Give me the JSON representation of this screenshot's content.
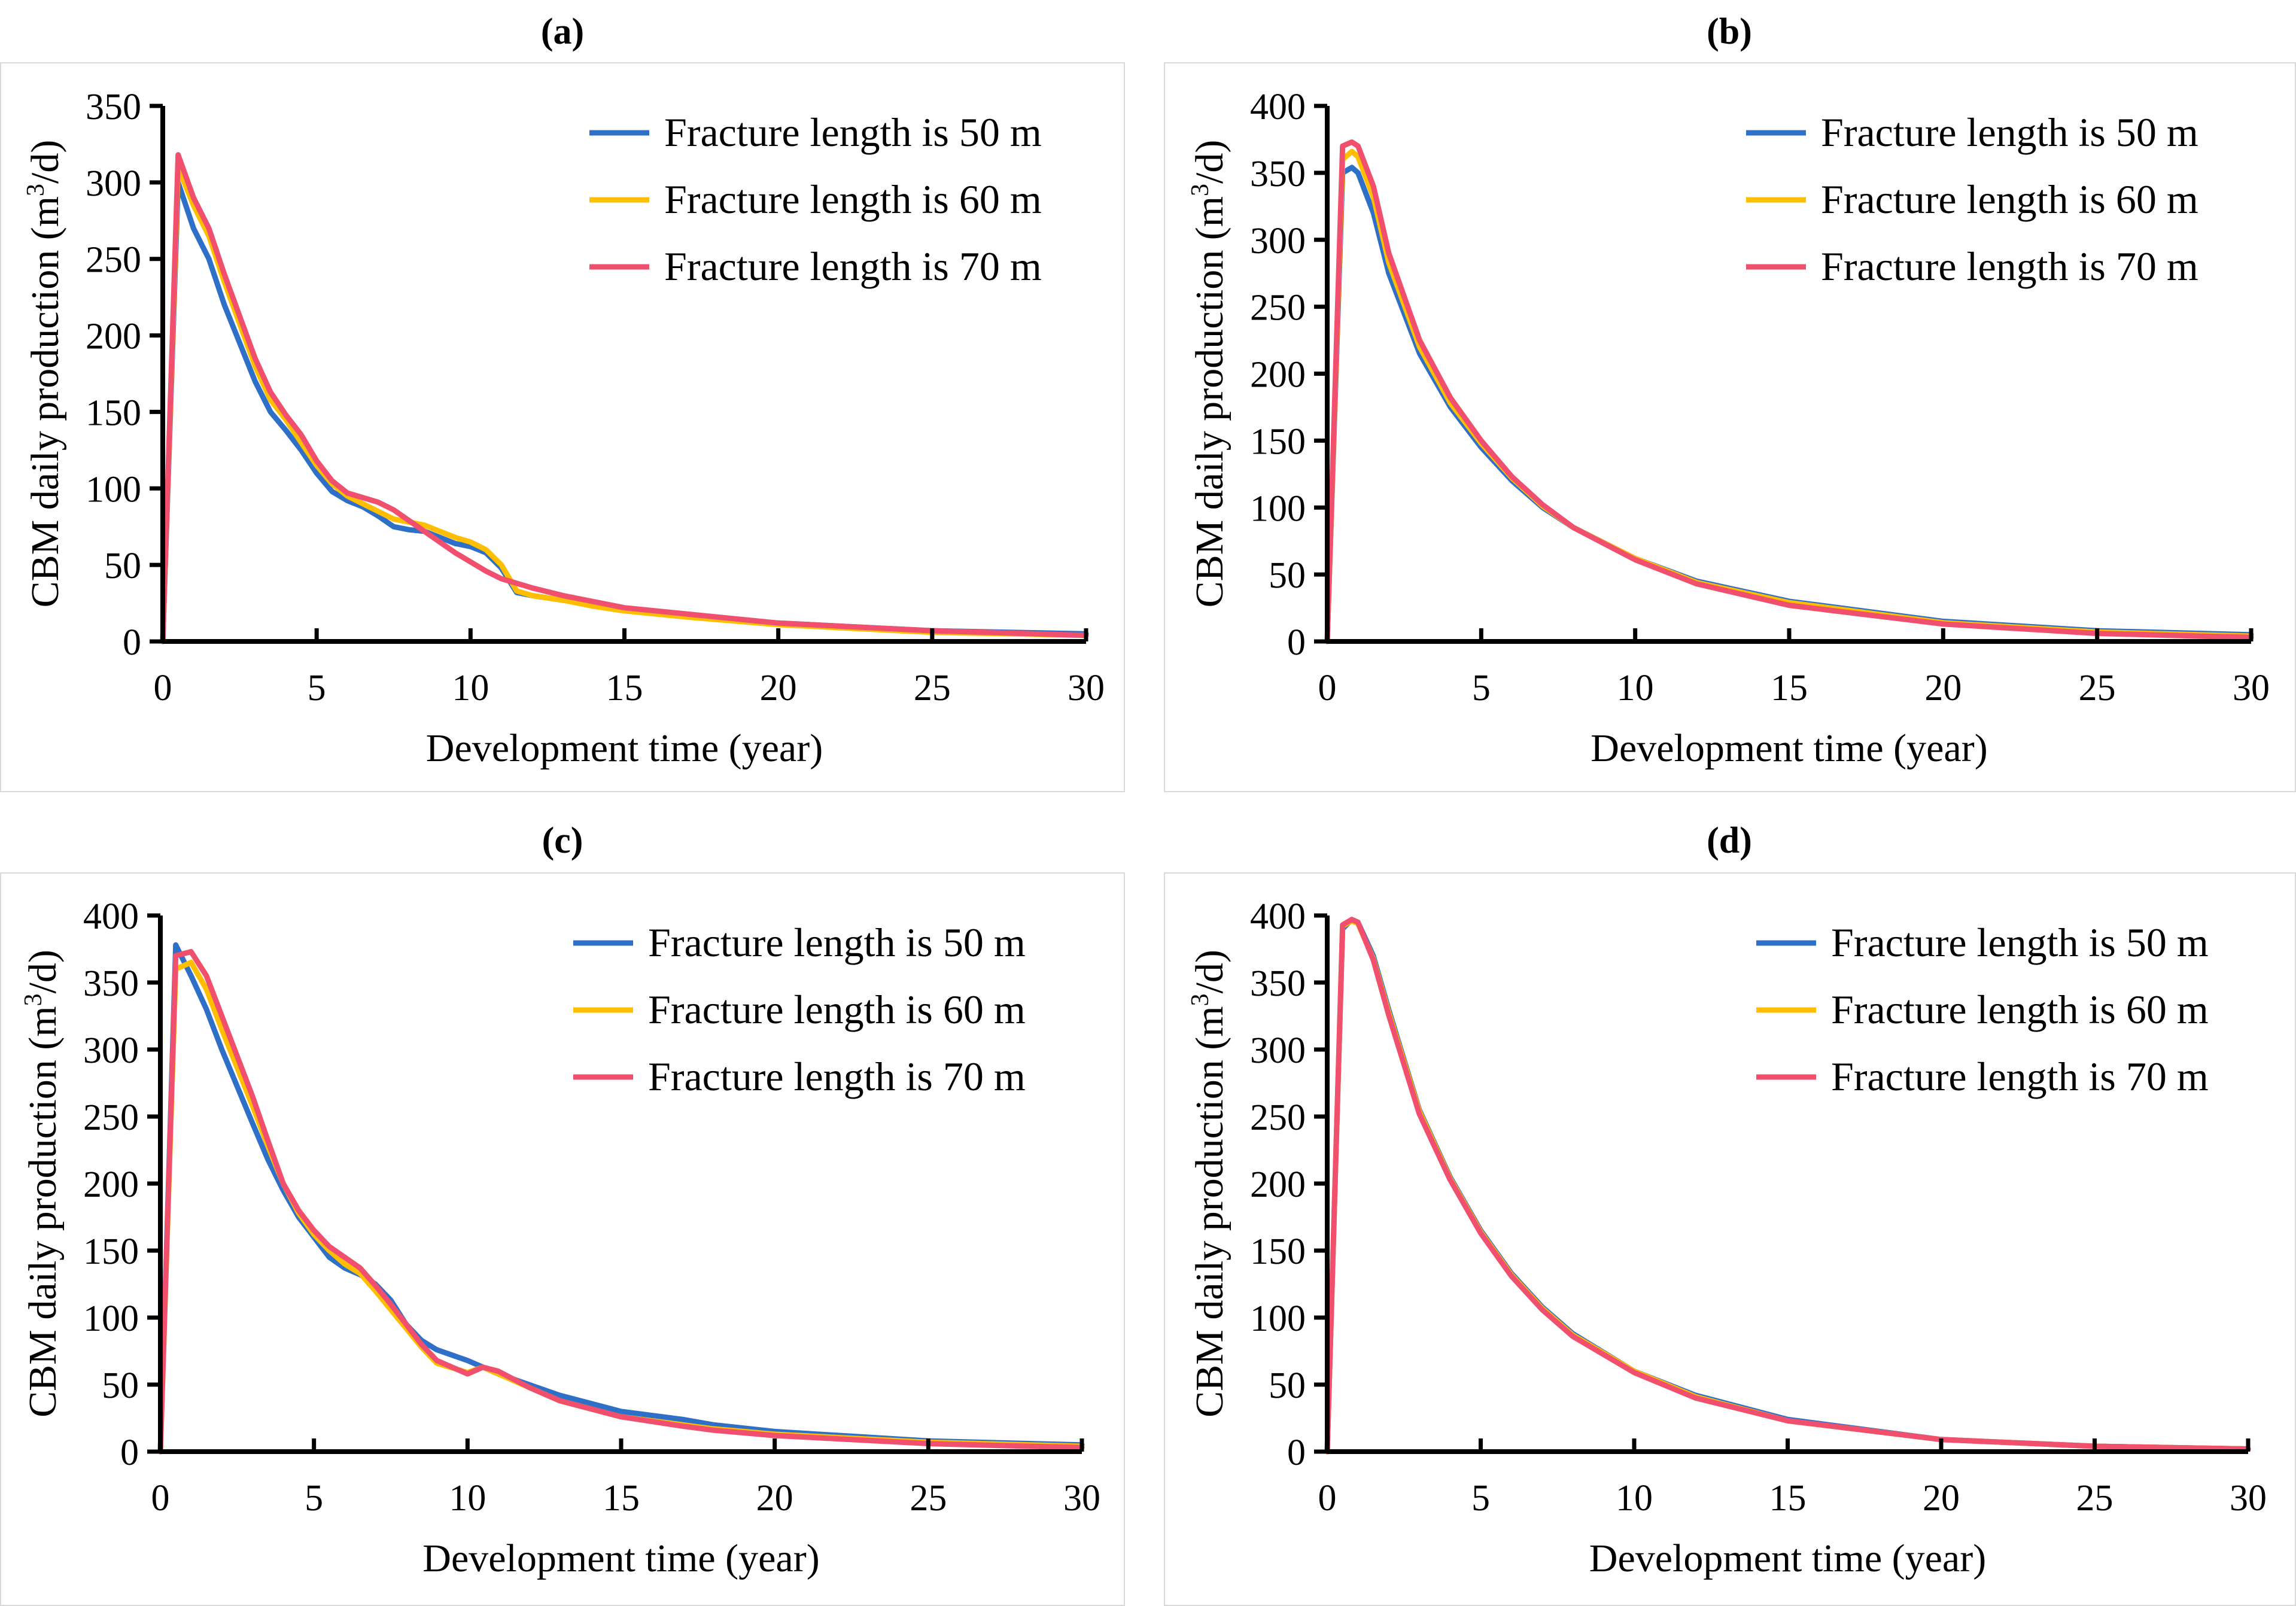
{
  "figure": {
    "panel_labels": [
      "(a)",
      "(b)",
      "(c)",
      "(d)"
    ],
    "series_colors": {
      "50 m": "#2e6fc7",
      "60 m": "#ffbe00",
      "70 m": "#f0506e"
    }
  },
  "chart_data": [
    {
      "type": "line",
      "panel": "(a)",
      "xlabel": "Development time (year)",
      "ylabel": "CBM daily production (m³/d)",
      "xlim": [
        0,
        30
      ],
      "ylim": [
        0,
        350
      ],
      "xticks": [
        0,
        5,
        10,
        15,
        20,
        25,
        30
      ],
      "yticks": [
        0,
        50,
        100,
        150,
        200,
        250,
        300,
        350
      ],
      "legend": "top-right",
      "series": [
        {
          "name": "Fracture length is 50 m",
          "color": "#2e6fc7",
          "x": [
            0,
            0.5,
            1,
            1.5,
            2,
            3,
            3.5,
            4,
            4.5,
            5,
            5.5,
            6,
            6.5,
            7,
            7.5,
            8,
            8.5,
            9,
            9.5,
            10,
            10.5,
            11,
            11.5,
            12,
            13,
            14,
            15,
            17,
            20,
            25,
            30
          ],
          "y": [
            0,
            300,
            270,
            250,
            220,
            170,
            150,
            138,
            125,
            110,
            98,
            92,
            88,
            82,
            75,
            73,
            72,
            68,
            64,
            62,
            58,
            48,
            32,
            30,
            27,
            24,
            21,
            17,
            12,
            7,
            5
          ]
        },
        {
          "name": "Fracture length is 60 m",
          "color": "#ffbe00",
          "x": [
            0,
            0.5,
            1,
            1.5,
            2,
            3,
            3.5,
            4,
            4.5,
            5,
            5.5,
            6,
            6.5,
            7,
            7.5,
            8,
            8.5,
            9,
            9.5,
            10,
            10.5,
            11,
            11.5,
            12,
            13,
            14,
            15,
            17,
            20,
            25,
            30
          ],
          "y": [
            0,
            310,
            285,
            265,
            235,
            180,
            158,
            145,
            130,
            115,
            103,
            95,
            90,
            85,
            80,
            78,
            76,
            72,
            68,
            65,
            60,
            50,
            33,
            30,
            27,
            23,
            20,
            16,
            11,
            6,
            4
          ]
        },
        {
          "name": "Fracture length is 70 m",
          "color": "#f0506e",
          "x": [
            0,
            0.5,
            1,
            1.5,
            2,
            3,
            3.5,
            4,
            4.5,
            5,
            5.5,
            6,
            6.5,
            7,
            7.5,
            8,
            8.5,
            9,
            9.5,
            10,
            10.5,
            11,
            11.5,
            12,
            13,
            14,
            15,
            17,
            20,
            25,
            30
          ],
          "y": [
            0,
            318,
            290,
            270,
            240,
            185,
            163,
            148,
            135,
            118,
            105,
            97,
            94,
            91,
            86,
            79,
            72,
            65,
            58,
            52,
            46,
            41,
            38,
            35,
            30,
            26,
            22,
            18,
            12,
            7,
            4
          ]
        }
      ]
    },
    {
      "type": "line",
      "panel": "(b)",
      "xlabel": "Development time (year)",
      "ylabel": "CBM daily production (m³/d)",
      "xlim": [
        0,
        30
      ],
      "ylim": [
        0,
        400
      ],
      "xticks": [
        0,
        5,
        10,
        15,
        20,
        25,
        30
      ],
      "yticks": [
        0,
        50,
        100,
        150,
        200,
        250,
        300,
        350,
        400
      ],
      "legend": "top-right",
      "series": [
        {
          "name": "Fracture length is 50 m",
          "color": "#2e6fc7",
          "x": [
            0,
            0.5,
            0.8,
            1,
            1.5,
            2,
            3,
            4,
            5,
            6,
            7,
            8,
            10,
            12,
            15,
            20,
            25,
            30
          ],
          "y": [
            0,
            350,
            354,
            350,
            320,
            275,
            215,
            175,
            145,
            120,
            100,
            85,
            62,
            45,
            30,
            15,
            8,
            5
          ]
        },
        {
          "name": "Fracture length is 60 m",
          "color": "#ffbe00",
          "x": [
            0,
            0.5,
            0.8,
            1,
            1.5,
            2,
            3,
            4,
            5,
            6,
            7,
            8,
            10,
            12,
            15,
            20,
            25,
            30
          ],
          "y": [
            0,
            360,
            366,
            362,
            332,
            283,
            220,
            178,
            148,
            122,
            101,
            85,
            62,
            44,
            29,
            14,
            7,
            4
          ]
        },
        {
          "name": "Fracture length is 70 m",
          "color": "#f0506e",
          "x": [
            0,
            0.5,
            0.8,
            1,
            1.5,
            2,
            3,
            4,
            5,
            6,
            7,
            8,
            10,
            12,
            15,
            20,
            25,
            30
          ],
          "y": [
            0,
            370,
            373,
            370,
            340,
            290,
            225,
            182,
            150,
            123,
            102,
            85,
            61,
            43,
            27,
            13,
            6,
            3
          ]
        }
      ]
    },
    {
      "type": "line",
      "panel": "(c)",
      "xlabel": "Development time (year)",
      "ylabel": "CBM daily production (m³/d)",
      "xlim": [
        0,
        30
      ],
      "ylim": [
        0,
        400
      ],
      "xticks": [
        0,
        5,
        10,
        15,
        20,
        25,
        30
      ],
      "yticks": [
        0,
        50,
        100,
        150,
        200,
        250,
        300,
        350,
        400
      ],
      "legend": "top-right",
      "series": [
        {
          "name": "Fracture length is 50 m",
          "color": "#2e6fc7",
          "x": [
            0,
            0.5,
            1,
            1.5,
            2,
            3,
            3.5,
            4,
            4.5,
            5,
            5.5,
            6,
            6.5,
            7,
            7.5,
            8,
            8.5,
            9,
            10,
            10.5,
            11,
            12,
            13,
            15,
            17,
            18,
            20,
            25,
            30
          ],
          "y": [
            0,
            378,
            355,
            330,
            300,
            245,
            218,
            195,
            175,
            160,
            145,
            137,
            132,
            125,
            113,
            95,
            83,
            76,
            68,
            63,
            58,
            50,
            42,
            30,
            24,
            20,
            15,
            8,
            5
          ]
        },
        {
          "name": "Fracture length is 60 m",
          "color": "#ffbe00",
          "x": [
            0,
            0.5,
            1,
            1.5,
            2,
            3,
            3.5,
            4,
            4.5,
            5,
            5.5,
            6,
            6.5,
            7,
            7.5,
            8,
            8.5,
            9,
            10,
            10.5,
            11,
            12,
            13,
            15,
            17,
            18,
            20,
            25,
            30
          ],
          "y": [
            0,
            360,
            365,
            345,
            315,
            258,
            228,
            200,
            178,
            162,
            150,
            140,
            133,
            120,
            106,
            92,
            78,
            66,
            59,
            63,
            58,
            48,
            38,
            26,
            20,
            17,
            13,
            7,
            4
          ]
        },
        {
          "name": "Fracture length is 70 m",
          "color": "#f0506e",
          "x": [
            0,
            0.5,
            1,
            1.5,
            2,
            3,
            3.5,
            4,
            4.5,
            5,
            5.5,
            6,
            6.5,
            7,
            7.5,
            8,
            8.5,
            9,
            10,
            10.5,
            11,
            12,
            13,
            15,
            17,
            18,
            20,
            25,
            30
          ],
          "y": [
            0,
            370,
            373,
            355,
            325,
            265,
            232,
            200,
            180,
            165,
            153,
            145,
            137,
            124,
            110,
            95,
            80,
            68,
            58,
            63,
            60,
            48,
            38,
            26,
            19,
            16,
            12,
            6,
            3
          ]
        }
      ]
    },
    {
      "type": "line",
      "panel": "(d)",
      "xlabel": "Development time (year)",
      "ylabel": "CBM daily production (m³/d)",
      "xlim": [
        0,
        30
      ],
      "ylim": [
        0,
        400
      ],
      "xticks": [
        0,
        5,
        10,
        15,
        20,
        25,
        30
      ],
      "yticks": [
        0,
        50,
        100,
        150,
        200,
        250,
        300,
        350,
        400
      ],
      "legend": "top-right",
      "series": [
        {
          "name": "Fracture length is 50 m",
          "color": "#2e6fc7",
          "x": [
            0,
            0.5,
            0.8,
            1,
            1.5,
            2,
            3,
            4,
            5,
            6,
            7,
            8,
            10,
            12,
            15,
            20,
            25,
            30
          ],
          "y": [
            0,
            390,
            397,
            395,
            370,
            330,
            255,
            205,
            165,
            133,
            108,
            88,
            60,
            42,
            24,
            9,
            4,
            2
          ]
        },
        {
          "name": "Fracture length is 60 m",
          "color": "#ffbe00",
          "x": [
            0,
            0.5,
            0.8,
            1,
            1.5,
            2,
            3,
            4,
            5,
            6,
            7,
            8,
            10,
            12,
            15,
            20,
            25,
            30
          ],
          "y": [
            0,
            392,
            396,
            394,
            368,
            328,
            254,
            204,
            164,
            132,
            107,
            87,
            60,
            41,
            23,
            9,
            4,
            2
          ]
        },
        {
          "name": "Fracture length is 70 m",
          "color": "#f0506e",
          "x": [
            0,
            0.5,
            0.8,
            1,
            1.5,
            2,
            3,
            4,
            5,
            6,
            7,
            8,
            10,
            12,
            15,
            20,
            25,
            30
          ],
          "y": [
            0,
            393,
            397,
            395,
            367,
            326,
            252,
            203,
            163,
            131,
            106,
            86,
            59,
            40,
            23,
            9,
            4,
            2
          ]
        }
      ]
    }
  ]
}
